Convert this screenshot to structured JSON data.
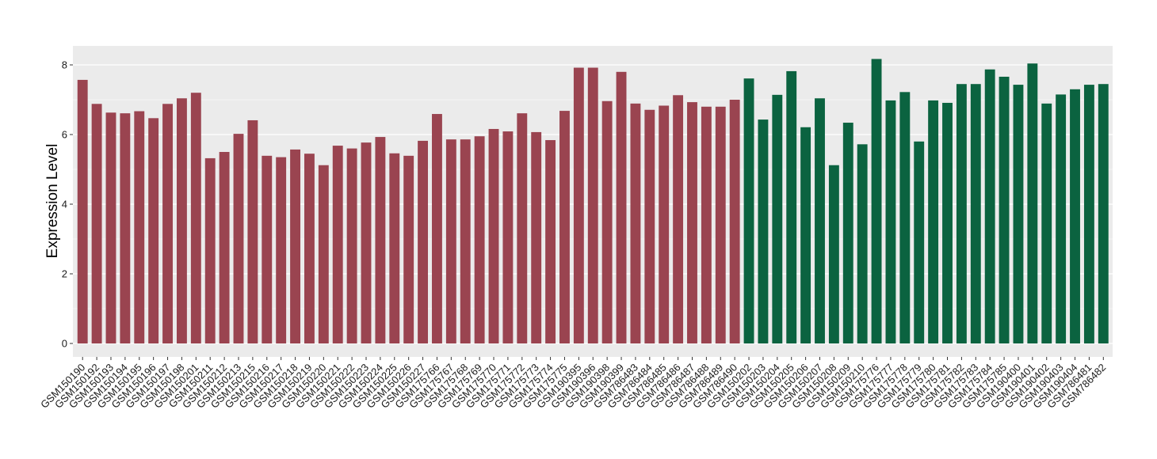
{
  "chart_data": {
    "type": "bar",
    "title": "",
    "xlabel": "",
    "ylabel": "Expression Level",
    "ylim": [
      0,
      8.4
    ],
    "yticks": [
      0,
      2,
      4,
      6,
      8
    ],
    "grid": true,
    "colors": {
      "red": "#9a4450",
      "green": "#0b6340",
      "panel": "#ebebeb",
      "gridline": "#ffffff"
    },
    "categories": [
      "GSM150190",
      "GSM150192",
      "GSM150193",
      "GSM150194",
      "GSM150195",
      "GSM150196",
      "GSM150197",
      "GSM150198",
      "GSM150201",
      "GSM150211",
      "GSM150212",
      "GSM150213",
      "GSM150215",
      "GSM150216",
      "GSM150217",
      "GSM150218",
      "GSM150219",
      "GSM150220",
      "GSM150221",
      "GSM150222",
      "GSM150223",
      "GSM150224",
      "GSM150225",
      "GSM150226",
      "GSM150227",
      "GSM175766",
      "GSM175767",
      "GSM175768",
      "GSM175769",
      "GSM175770",
      "GSM175771",
      "GSM175772",
      "GSM175773",
      "GSM175774",
      "GSM175775",
      "GSM190395",
      "GSM190396",
      "GSM190398",
      "GSM190399",
      "GSM786483",
      "GSM786484",
      "GSM786485",
      "GSM786486",
      "GSM786487",
      "GSM786488",
      "GSM786489",
      "GSM786490",
      "GSM150202",
      "GSM150203",
      "GSM150204",
      "GSM150205",
      "GSM150206",
      "GSM150207",
      "GSM150208",
      "GSM150209",
      "GSM150210",
      "GSM175776",
      "GSM175777",
      "GSM175778",
      "GSM175779",
      "GSM175780",
      "GSM175781",
      "GSM175782",
      "GSM175783",
      "GSM175784",
      "GSM175785",
      "GSM190400",
      "GSM190401",
      "GSM190402",
      "GSM190403",
      "GSM190404",
      "GSM786481",
      "GSM786482"
    ],
    "values": [
      7.57,
      6.88,
      6.63,
      6.61,
      6.67,
      6.47,
      6.88,
      7.04,
      7.2,
      5.32,
      5.5,
      6.02,
      6.41,
      5.39,
      5.35,
      5.57,
      5.45,
      5.12,
      5.68,
      5.6,
      5.77,
      5.93,
      5.46,
      5.39,
      5.82,
      6.59,
      5.86,
      5.86,
      5.95,
      6.16,
      6.09,
      6.61,
      6.07,
      5.84,
      6.68,
      7.92,
      7.92,
      6.96,
      7.8,
      6.89,
      6.71,
      6.83,
      7.13,
      6.93,
      6.8,
      6.8,
      7.0,
      7.61,
      6.43,
      7.14,
      7.82,
      6.21,
      7.04,
      5.12,
      6.34,
      5.72,
      8.17,
      6.98,
      7.22,
      5.8,
      6.98,
      6.91,
      7.45,
      7.45,
      7.87,
      7.66,
      7.43,
      8.04,
      6.89,
      7.15,
      7.3,
      7.43,
      7.45
    ],
    "groups": [
      "red",
      "red",
      "red",
      "red",
      "red",
      "red",
      "red",
      "red",
      "red",
      "red",
      "red",
      "red",
      "red",
      "red",
      "red",
      "red",
      "red",
      "red",
      "red",
      "red",
      "red",
      "red",
      "red",
      "red",
      "red",
      "red",
      "red",
      "red",
      "red",
      "red",
      "red",
      "red",
      "red",
      "red",
      "red",
      "red",
      "red",
      "red",
      "red",
      "red",
      "red",
      "red",
      "red",
      "red",
      "red",
      "red",
      "red",
      "green",
      "green",
      "green",
      "green",
      "green",
      "green",
      "green",
      "green",
      "green",
      "green",
      "green",
      "green",
      "green",
      "green",
      "green",
      "green",
      "green",
      "green",
      "green",
      "green",
      "green",
      "green",
      "green",
      "green",
      "green",
      "green"
    ]
  }
}
